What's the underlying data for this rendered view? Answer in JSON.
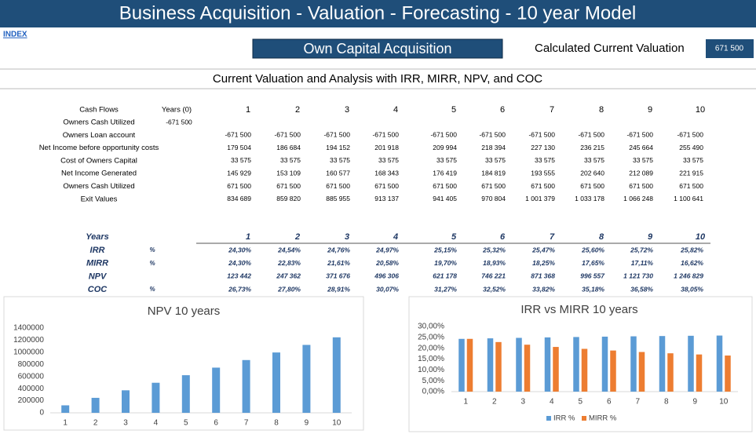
{
  "header": {
    "title": "Business Acquisition - Valuation - Forecasting - 10 year Model",
    "link": "INDEX"
  },
  "controls": {
    "mode_button": "Own Capital Acquisition",
    "valuation_label": "Calculated Current Valuation",
    "valuation_value": "671 500"
  },
  "section_title": "Current Valuation and Analysis with IRR, MIRR, NPV, and COC",
  "cash_flows": {
    "header": "Cash Flows",
    "year0_header": "Years (0)",
    "years": [
      "1",
      "2",
      "3",
      "4",
      "5",
      "6",
      "7",
      "8",
      "9",
      "10"
    ],
    "rows": [
      {
        "label": "Owners Cash Utilized",
        "year0": "-671 500"
      },
      {
        "label": "Owners Loan account",
        "values": [
          "-671 500",
          "-671 500",
          "-671 500",
          "-671 500",
          "-671 500",
          "-671 500",
          "-671 500",
          "-671 500",
          "-671 500",
          "-671 500"
        ]
      },
      {
        "label": "Net Income before opportunity costs",
        "values": [
          "179 504",
          "186 684",
          "194 152",
          "201 918",
          "209 994",
          "218 394",
          "227 130",
          "236 215",
          "245 664",
          "255 490"
        ]
      },
      {
        "label": "Cost of Owners Capital",
        "values": [
          "33 575",
          "33 575",
          "33 575",
          "33 575",
          "33 575",
          "33 575",
          "33 575",
          "33 575",
          "33 575",
          "33 575"
        ]
      },
      {
        "label": "Net Income Generated",
        "values": [
          "145 929",
          "153 109",
          "160 577",
          "168 343",
          "176 419",
          "184 819",
          "193 555",
          "202 640",
          "212 089",
          "221 915"
        ]
      },
      {
        "label": "Owners Cash Utilized",
        "values": [
          "671 500",
          "671 500",
          "671 500",
          "671 500",
          "671 500",
          "671 500",
          "671 500",
          "671 500",
          "671 500",
          "671 500"
        ]
      },
      {
        "label": "Exit Values",
        "values": [
          "834 689",
          "859 820",
          "885 955",
          "913 137",
          "941 405",
          "970 804",
          "1 001 379",
          "1 033 178",
          "1 066 248",
          "1 100 641"
        ]
      }
    ]
  },
  "analysis": {
    "header": "Years",
    "years": [
      "1",
      "2",
      "3",
      "4",
      "5",
      "6",
      "7",
      "8",
      "9",
      "10"
    ],
    "rows": [
      {
        "label": "IRR",
        "unit": "%",
        "values": [
          "24,30%",
          "24,54%",
          "24,76%",
          "24,97%",
          "25,15%",
          "25,32%",
          "25,47%",
          "25,60%",
          "25,72%",
          "25,82%"
        ]
      },
      {
        "label": "MIRR",
        "unit": "%",
        "values": [
          "24,30%",
          "22,83%",
          "21,61%",
          "20,58%",
          "19,70%",
          "18,93%",
          "18,25%",
          "17,65%",
          "17,11%",
          "16,62%"
        ]
      },
      {
        "label": "NPV",
        "values": [
          "123 442",
          "247 362",
          "371 676",
          "496 306",
          "621 178",
          "746 221",
          "871 368",
          "996 557",
          "1 121 730",
          "1 246 829"
        ]
      },
      {
        "label": "COC",
        "unit": "%",
        "values": [
          "26,73%",
          "27,80%",
          "28,91%",
          "30,07%",
          "31,27%",
          "32,52%",
          "33,82%",
          "35,18%",
          "36,58%",
          "38,05%"
        ]
      }
    ]
  },
  "charts": [
    {
      "type": "bar",
      "title": "NPV 10 years",
      "categories": [
        "1",
        "2",
        "3",
        "4",
        "5",
        "6",
        "7",
        "8",
        "9",
        "10"
      ],
      "values": [
        123442,
        247362,
        371676,
        496306,
        621178,
        746221,
        871368,
        996557,
        1121730,
        1246829
      ],
      "color": "#5b9bd5",
      "ylim": [
        0,
        1400000
      ],
      "yticks": [
        0,
        200000,
        400000,
        600000,
        800000,
        1000000,
        1200000,
        1400000
      ]
    },
    {
      "type": "grouped-bar",
      "title": "IRR vs MIRR 10 years",
      "categories": [
        "1",
        "2",
        "3",
        "4",
        "5",
        "6",
        "7",
        "8",
        "9",
        "10"
      ],
      "series": [
        {
          "name": "IRR %",
          "color": "#5b9bd5",
          "values": [
            24.3,
            24.54,
            24.76,
            24.97,
            25.15,
            25.32,
            25.47,
            25.6,
            25.72,
            25.82
          ]
        },
        {
          "name": "MIRR %",
          "color": "#ed7d31",
          "values": [
            24.3,
            22.83,
            21.61,
            20.58,
            19.7,
            18.93,
            18.25,
            17.65,
            17.11,
            16.62
          ]
        }
      ],
      "ylim": [
        0,
        30
      ],
      "yticks": [
        {
          "value": 0,
          "label": "0,00%"
        },
        {
          "value": 5,
          "label": "5,00%"
        },
        {
          "value": 10,
          "label": "10,00%"
        },
        {
          "value": 15,
          "label": "15,00%"
        },
        {
          "value": 20,
          "label": "20,00%"
        },
        {
          "value": 25,
          "label": "25,00%"
        },
        {
          "value": 30,
          "label": "30,00%"
        }
      ],
      "legend": "bottom"
    }
  ]
}
